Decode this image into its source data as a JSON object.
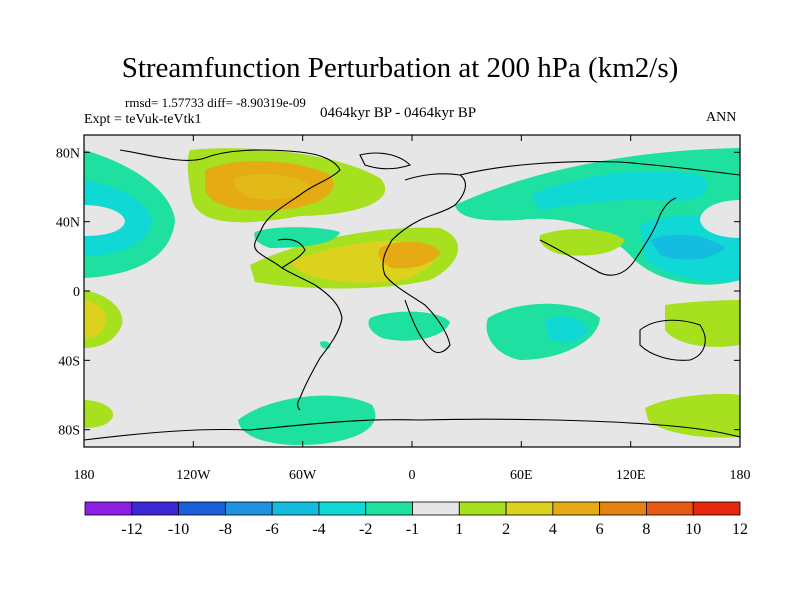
{
  "header": {
    "title": "Streamfunction Perturbation at 200 hPa (km2/s)",
    "stats": "rmsd= 1.57733 diff= -8.90319e-09",
    "experiment": "Expt = teVuk-teVtk1",
    "period": "0464kyr BP - 0464kyr BP",
    "season": "ANN"
  },
  "axes": {
    "lat_ticks": [
      "80N",
      "40N",
      "0",
      "40S",
      "80S"
    ],
    "lon_ticks": [
      "180",
      "120W",
      "60W",
      "0",
      "60E",
      "120E",
      "180"
    ]
  },
  "colorbar": {
    "colors": [
      "#8a1fe6",
      "#3c28d6",
      "#1c5fdc",
      "#1e92e0",
      "#14bde0",
      "#10d8d4",
      "#1ee0a0",
      "#e6e6e6",
      "#a6e01e",
      "#dcd21e",
      "#e6aa14",
      "#e68212",
      "#e65a12",
      "#e6280e"
    ],
    "labels": [
      "-12",
      "-10",
      "-8",
      "-6",
      "-4",
      "-2",
      "-1",
      "1",
      "2",
      "4",
      "6",
      "8",
      "10",
      "12"
    ]
  },
  "map_data": {
    "projection": "cylindrical equidistant",
    "lon_range": [
      -180,
      180
    ],
    "lat_range": [
      -90,
      90
    ],
    "regions": [
      {
        "lon": -75,
        "lat": 55,
        "level": "4",
        "label": "North America / North Atlantic positive"
      },
      {
        "lon": 10,
        "lat": 15,
        "level": "6",
        "label": "Sahara positive"
      },
      {
        "lon": 135,
        "lat": 30,
        "level": "-4",
        "label": "Northwest Pacific negative"
      },
      {
        "lon": 90,
        "lat": -10,
        "level": "-4",
        "label": "Indian Ocean negative"
      },
      {
        "lon": -55,
        "lat": -70,
        "level": "-2",
        "label": "Antarctic Peninsula negative"
      },
      {
        "lon": -170,
        "lat": 40,
        "level": "-2",
        "label": "North Pacific negative"
      },
      {
        "lon": -170,
        "lat": -15,
        "level": "4",
        "label": "South Pacific positive"
      },
      {
        "lon": 150,
        "lat": -60,
        "level": "2",
        "label": "Southern Ocean positive"
      }
    ]
  }
}
